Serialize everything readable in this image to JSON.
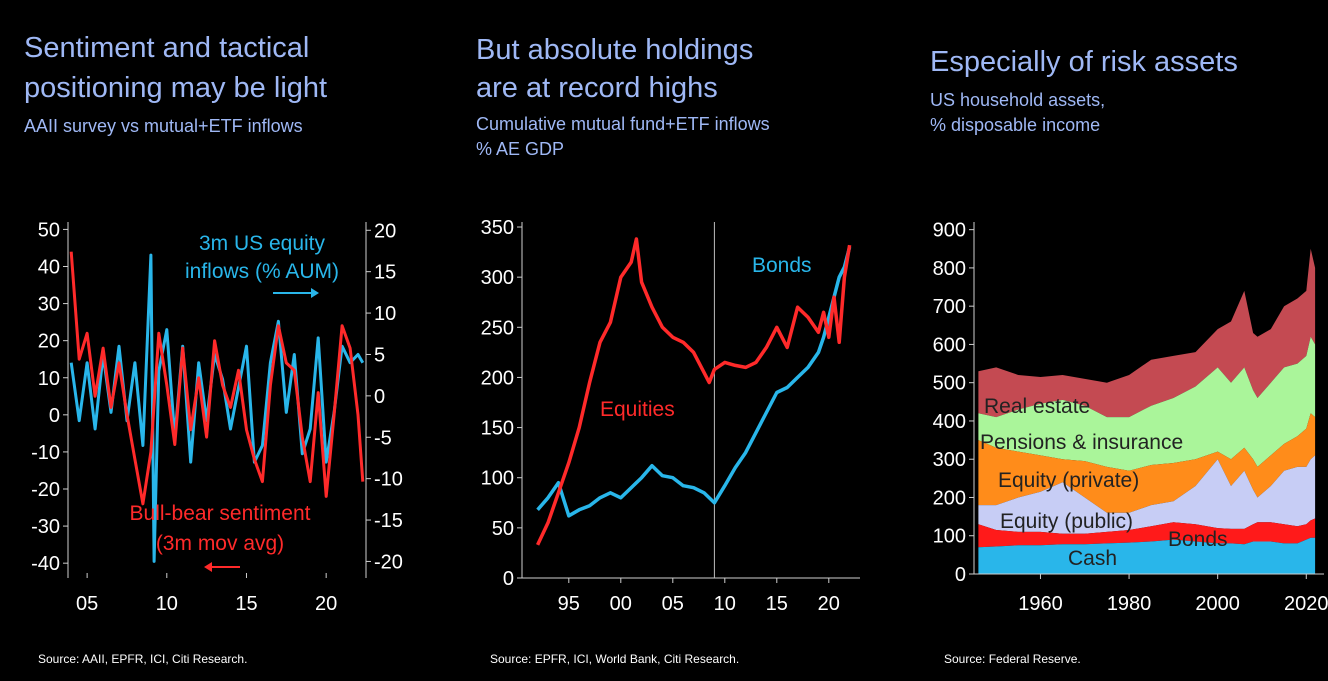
{
  "panels": [
    {
      "title_line1": "Sentiment and tactical",
      "title_line2": "positioning may be light",
      "subtitle": "AAII survey vs mutual+ETF inflows",
      "source": "Source: AAII, EPFR, ICI, Citi Research."
    },
    {
      "title_line1": "But absolute holdings",
      "title_line2": "are at record highs",
      "subtitle_line1": "Cumulative mutual fund+ETF inflows",
      "subtitle_line2": "% AE GDP",
      "source": "Source: EPFR, ICI, World Bank, Citi Research."
    },
    {
      "title_line1": "Especially of risk assets",
      "subtitle_line1": "US household assets,",
      "subtitle_line2": "% disposable income",
      "source": "Source: Federal Reserve."
    }
  ],
  "colors": {
    "red": "#ff2a2a",
    "blue": "#29b6ea",
    "title": "#9fb8f5"
  },
  "chart_data": [
    {
      "type": "line",
      "x_tick_labels": [
        "05",
        "10",
        "15",
        "20"
      ],
      "x_ticks": [
        2005,
        2010,
        2015,
        2020
      ],
      "xlim": [
        2003.8,
        2022.5
      ],
      "y_left_ticks": [
        50,
        40,
        30,
        20,
        10,
        0,
        -10,
        -20,
        -30,
        -40
      ],
      "y_left_tick_labels": [
        "50",
        "40",
        "30",
        "20",
        "10",
        "0",
        "-10",
        "-20",
        "-30",
        "-40"
      ],
      "ylim_left": [
        -44,
        52
      ],
      "y_right_ticks": [
        20,
        15,
        10,
        5,
        0,
        -5,
        -10,
        -15,
        -20
      ],
      "y_right_tick_labels": [
        "20",
        "15",
        "10",
        "5",
        "0",
        "-5",
        "-10",
        "-15",
        "-20"
      ],
      "ylim_right": [
        -22,
        21
      ],
      "annotations": [
        {
          "text": "3m US equity",
          "color": "#29b6ea"
        },
        {
          "text": "inflows (% AUM)",
          "color": "#29b6ea"
        },
        {
          "text": "Bull-bear sentiment",
          "color": "#ff2a2a"
        },
        {
          "text": "(3m mov avg)",
          "color": "#ff2a2a"
        }
      ],
      "series": [
        {
          "name": "Bull-bear sentiment (3m mov avg)",
          "axis": "left",
          "color": "#ff2a2a",
          "x": [
            2004.0,
            2004.5,
            2005.0,
            2005.5,
            2006.0,
            2006.5,
            2007.0,
            2007.5,
            2008.0,
            2008.5,
            2009.0,
            2009.5,
            2010.0,
            2010.5,
            2011.0,
            2011.5,
            2012.0,
            2012.5,
            2013.0,
            2013.5,
            2014.0,
            2014.5,
            2015.0,
            2015.5,
            2016.0,
            2016.5,
            2017.0,
            2017.5,
            2018.0,
            2018.5,
            2019.0,
            2019.5,
            2020.0,
            2020.5,
            2021.0,
            2021.5,
            2022.0,
            2022.3
          ],
          "values": [
            44,
            15,
            22,
            5,
            18,
            2,
            14,
            0,
            -12,
            -24,
            -10,
            22,
            8,
            -8,
            18,
            -4,
            10,
            -6,
            20,
            8,
            2,
            12,
            -4,
            -12,
            -18,
            8,
            24,
            14,
            12,
            -6,
            -18,
            6,
            -22,
            0,
            24,
            18,
            0,
            -18
          ]
        },
        {
          "name": "3m US equity inflows (% AUM)",
          "axis": "right",
          "color": "#29b6ea",
          "x": [
            2004.0,
            2004.5,
            2005.0,
            2005.5,
            2006.0,
            2006.5,
            2007.0,
            2007.5,
            2008.0,
            2008.5,
            2009.0,
            2009.2,
            2009.5,
            2010.0,
            2010.5,
            2011.0,
            2011.5,
            2012.0,
            2012.5,
            2013.0,
            2013.5,
            2014.0,
            2014.5,
            2015.0,
            2015.5,
            2016.0,
            2016.5,
            2017.0,
            2017.5,
            2018.0,
            2018.5,
            2019.0,
            2019.5,
            2020.0,
            2020.5,
            2021.0,
            2021.5,
            2022.0,
            2022.3
          ],
          "values": [
            4,
            -3,
            4,
            -4,
            5,
            -2,
            6,
            -3,
            4,
            -6,
            17,
            -20,
            3,
            8,
            -5,
            6,
            -8,
            4,
            -3,
            5,
            2,
            -4,
            1,
            6,
            -8,
            -6,
            4,
            9,
            -2,
            5,
            -7,
            -4,
            7,
            -8,
            -2,
            6,
            4,
            5,
            4
          ]
        }
      ]
    },
    {
      "type": "line",
      "x_tick_labels": [
        "95",
        "00",
        "05",
        "10",
        "15",
        "20"
      ],
      "x_ticks": [
        1995,
        2000,
        2005,
        2010,
        2015,
        2020
      ],
      "xlim": [
        1990.5,
        2023.0
      ],
      "y_ticks": [
        350,
        300,
        250,
        200,
        150,
        100,
        50,
        0
      ],
      "y_tick_labels": [
        "350",
        "300",
        "250",
        "200",
        "150",
        "100",
        "50",
        "0"
      ],
      "ylim": [
        0,
        355
      ],
      "vline_x": 2009.0,
      "series": [
        {
          "name": "Equities",
          "color": "#ff2a2a",
          "x": [
            1992.0,
            1993.0,
            1994.0,
            1995.0,
            1996.0,
            1997.0,
            1998.0,
            1999.0,
            2000.0,
            2001.0,
            2001.5,
            2002.0,
            2003.0,
            2004.0,
            2005.0,
            2006.0,
            2007.0,
            2008.0,
            2008.5,
            2009.0,
            2010.0,
            2011.0,
            2012.0,
            2013.0,
            2014.0,
            2015.0,
            2016.0,
            2017.0,
            2018.0,
            2019.0,
            2019.5,
            2020.0,
            2020.5,
            2021.0,
            2021.5,
            2022.0
          ],
          "values": [
            33,
            55,
            85,
            115,
            150,
            195,
            235,
            255,
            300,
            315,
            338,
            295,
            270,
            250,
            240,
            235,
            225,
            205,
            195,
            208,
            215,
            212,
            210,
            215,
            230,
            250,
            230,
            270,
            260,
            245,
            265,
            240,
            280,
            235,
            300,
            332
          ]
        },
        {
          "name": "Bonds",
          "color": "#29b6ea",
          "x": [
            1992.0,
            1993.0,
            1994.0,
            1995.0,
            1996.0,
            1997.0,
            1998.0,
            1999.0,
            2000.0,
            2001.0,
            2002.0,
            2003.0,
            2004.0,
            2005.0,
            2006.0,
            2007.0,
            2008.0,
            2009.0,
            2010.0,
            2011.0,
            2012.0,
            2013.0,
            2014.0,
            2015.0,
            2016.0,
            2017.0,
            2018.0,
            2019.0,
            2019.5,
            2020.0,
            2020.5,
            2021.0,
            2021.5,
            2022.0
          ],
          "values": [
            68,
            80,
            95,
            62,
            68,
            72,
            80,
            85,
            80,
            90,
            100,
            112,
            102,
            100,
            92,
            90,
            85,
            75,
            92,
            110,
            125,
            145,
            165,
            185,
            190,
            200,
            210,
            225,
            240,
            260,
            280,
            300,
            310,
            330
          ]
        }
      ],
      "annotations": [
        {
          "text": "Bonds",
          "color": "#29b6ea"
        },
        {
          "text": "Equities",
          "color": "#ff2a2a"
        }
      ]
    },
    {
      "type": "area",
      "x_tick_labels": [
        "1960",
        "1980",
        "2000",
        "2020"
      ],
      "x_ticks": [
        1960,
        1980,
        2000,
        2020
      ],
      "xlim": [
        1945.0,
        2024.0
      ],
      "y_ticks": [
        900,
        800,
        700,
        600,
        500,
        400,
        300,
        200,
        100,
        0
      ],
      "y_tick_labels": [
        "900",
        "800",
        "700",
        "600",
        "500",
        "400",
        "300",
        "200",
        "100",
        "0"
      ],
      "ylim": [
        0,
        920
      ],
      "x": [
        1946,
        1950,
        1955,
        1960,
        1965,
        1970,
        1975,
        1980,
        1985,
        1990,
        1995,
        2000,
        2003,
        2006,
        2008,
        2009,
        2012,
        2015,
        2018,
        2020,
        2021,
        2022
      ],
      "series": [
        {
          "name": "Cash",
          "label": "Cash",
          "color": "#29b6ea",
          "cumulative": [
            70,
            72,
            75,
            75,
            78,
            78,
            80,
            82,
            85,
            90,
            85,
            80,
            80,
            78,
            85,
            85,
            85,
            80,
            80,
            90,
            95,
            95
          ]
        },
        {
          "name": "Bonds",
          "label": "Bonds",
          "color": "#ff1a1a",
          "cumulative": [
            130,
            115,
            110,
            110,
            105,
            105,
            110,
            115,
            125,
            135,
            130,
            120,
            118,
            118,
            130,
            135,
            135,
            130,
            125,
            130,
            140,
            145
          ]
        },
        {
          "name": "Equity (public)",
          "label": "Equity (public)",
          "color": "#c7cdf5",
          "cumulative": [
            180,
            180,
            200,
            215,
            240,
            200,
            160,
            160,
            180,
            190,
            230,
            300,
            230,
            270,
            220,
            200,
            230,
            270,
            280,
            280,
            300,
            310
          ]
        },
        {
          "name": "Equity (private)",
          "label": "Equity (private)",
          "color": "#ff8c1a",
          "cumulative": [
            350,
            330,
            320,
            310,
            300,
            295,
            280,
            270,
            285,
            290,
            300,
            320,
            300,
            330,
            300,
            280,
            310,
            340,
            360,
            380,
            420,
            410
          ]
        },
        {
          "name": "Pensions & insurance",
          "label": "Pensions & insurance",
          "color": "#aaf59a",
          "cumulative": [
            420,
            410,
            430,
            445,
            455,
            440,
            410,
            410,
            440,
            460,
            490,
            540,
            500,
            540,
            480,
            460,
            500,
            540,
            550,
            570,
            620,
            600
          ]
        },
        {
          "name": "Real estate",
          "label": "Real estate",
          "color": "#c44a52",
          "cumulative": [
            530,
            540,
            520,
            515,
            520,
            510,
            500,
            520,
            560,
            570,
            580,
            640,
            660,
            740,
            630,
            620,
            640,
            700,
            720,
            740,
            850,
            800
          ]
        }
      ]
    }
  ]
}
